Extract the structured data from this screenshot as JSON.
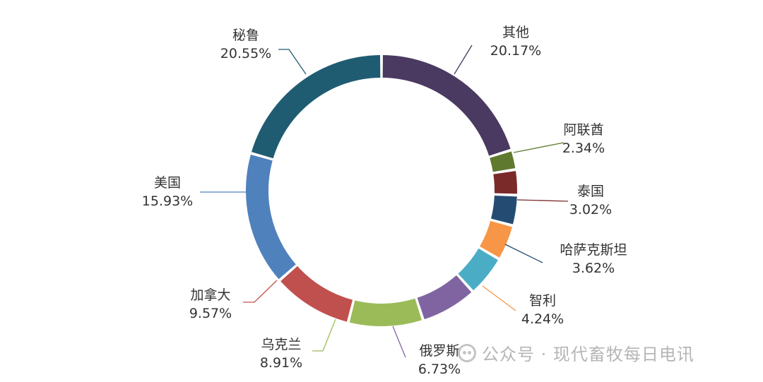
{
  "chart_data": {
    "type": "pie",
    "variant": "donut",
    "title": "",
    "legend": "none",
    "categories": [
      "其他",
      "阿联酋",
      "泰国",
      "哈萨克斯坦",
      "智利",
      "",
      "俄罗斯",
      "乌克兰",
      "加拿大",
      "美国",
      "秘鲁"
    ],
    "values": [
      20.17,
      2.34,
      3.02,
      3.62,
      4.24,
      4.92,
      6.73,
      8.91,
      9.57,
      15.93,
      20.55
    ],
    "value_labels": [
      "20.17%",
      "2.34%",
      "3.02%",
      "3.62%",
      "4.24%",
      "",
      "6.73%",
      "8.91%",
      "9.57%",
      "15.93%",
      "20.55%"
    ],
    "colors": [
      "#4a3960",
      "#5f7a2e",
      "#7b2a2a",
      "#244c72",
      "#f79646",
      "#4bacc6",
      "#8064a2",
      "#9bbb59",
      "#c0504d",
      "#4f81bd",
      "#1f5c72"
    ]
  },
  "watermark": {
    "text": "公众号 · 现代畜牧每日电讯",
    "icon": "wechat-official-account-icon"
  }
}
